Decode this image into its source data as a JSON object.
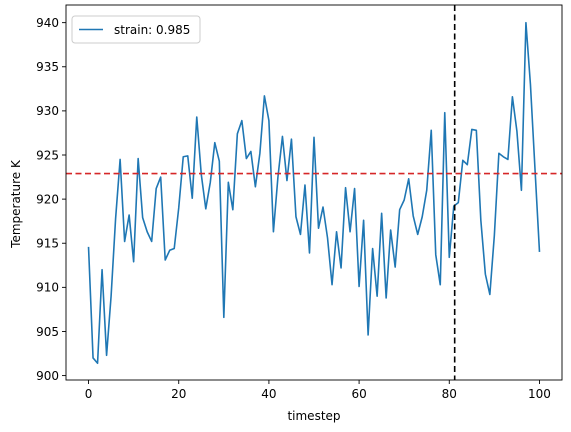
{
  "chart_data": {
    "type": "line",
    "xlabel": "timestep",
    "ylabel": "Temperature K",
    "xlim": [
      -5,
      105
    ],
    "ylim": [
      899.5,
      942
    ],
    "xticks": [
      0,
      20,
      40,
      60,
      80,
      100
    ],
    "yticks": [
      900,
      905,
      910,
      915,
      920,
      925,
      930,
      935,
      940
    ],
    "grid": false,
    "legend_position": "top-left",
    "series": [
      {
        "name": "strain: 0.985",
        "color": "#1f77b4",
        "x": [
          0,
          1,
          2,
          3,
          4,
          5,
          6,
          7,
          8,
          9,
          10,
          11,
          12,
          13,
          14,
          15,
          16,
          17,
          18,
          19,
          20,
          21,
          22,
          23,
          24,
          25,
          26,
          27,
          28,
          29,
          30,
          31,
          32,
          33,
          34,
          35,
          36,
          37,
          38,
          39,
          40,
          41,
          42,
          43,
          44,
          45,
          46,
          47,
          48,
          49,
          50,
          51,
          52,
          53,
          54,
          55,
          56,
          57,
          58,
          59,
          60,
          61,
          62,
          63,
          64,
          65,
          66,
          67,
          68,
          69,
          70,
          71,
          72,
          73,
          74,
          75,
          76,
          77,
          78,
          79,
          80,
          81,
          82,
          83,
          84,
          85,
          86,
          87,
          88,
          89,
          90,
          91,
          92,
          93,
          94,
          95,
          96,
          97,
          98,
          99,
          100
        ],
        "y": [
          914.5,
          902.0,
          901.4,
          912.0,
          902.3,
          909.0,
          917.8,
          924.5,
          915.2,
          918.2,
          912.9,
          924.6,
          917.9,
          916.3,
          915.2,
          921.2,
          922.5,
          913.1,
          914.2,
          914.4,
          919.0,
          924.8,
          924.9,
          920.1,
          929.3,
          922.8,
          918.9,
          921.9,
          926.4,
          924.3,
          906.6,
          921.9,
          918.8,
          927.4,
          928.9,
          924.6,
          925.4,
          921.4,
          925.2,
          931.7,
          928.9,
          916.3,
          922.5,
          927.1,
          922.1,
          926.8,
          918.0,
          916.0,
          921.6,
          913.9,
          927.0,
          916.7,
          919.1,
          915.6,
          910.3,
          916.3,
          912.2,
          921.3,
          916.3,
          921.2,
          910.1,
          917.6,
          904.6,
          914.4,
          909.0,
          918.4,
          908.8,
          916.5,
          912.3,
          918.8,
          919.9,
          922.3,
          918.1,
          916.0,
          918.0,
          921.0,
          927.8,
          913.7,
          910.3,
          929.8,
          913.4,
          919.2,
          919.6,
          924.4,
          923.9,
          927.9,
          927.8,
          917.6,
          911.5,
          909.2,
          915.9,
          925.2,
          924.8,
          924.5,
          931.6,
          927.7,
          921.0,
          940.0,
          933.0,
          923.5,
          914.1
        ]
      }
    ],
    "reference_lines": [
      {
        "orientation": "horizontal",
        "value": 922.9,
        "color": "#d62728",
        "style": "dashed"
      },
      {
        "orientation": "vertical",
        "value": 81.2,
        "color": "#000000",
        "style": "dashed"
      }
    ]
  }
}
